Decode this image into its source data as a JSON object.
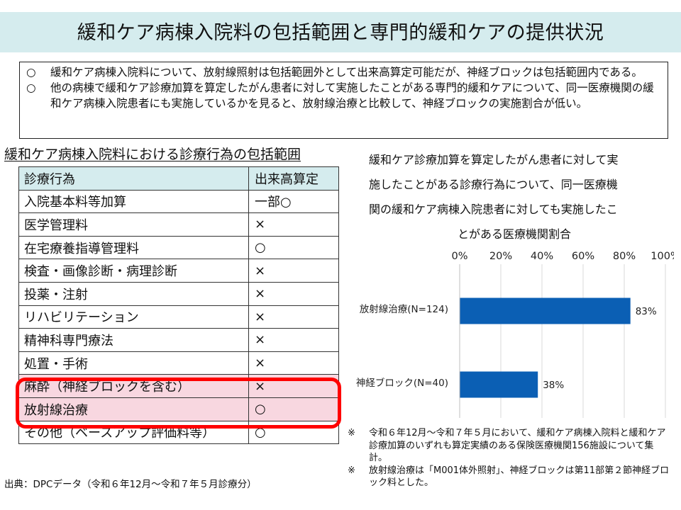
{
  "title": "緩和ケア病棟入院料の包括範囲と専門的緩和ケアの提供状況",
  "summary": [
    {
      "bullet": "○",
      "text": "緩和ケア病棟入院料について、放射線照射は包括範囲外として出来高算定可能だが、神経ブロックは包括範囲内である。"
    },
    {
      "bullet": "○",
      "text": "他の病棟で緩和ケア診療加算を算定したがん患者に対して実施したことがある専門的緩和ケアについて、同一医療機関の緩和ケア病棟入院患者にも実施しているかを見ると、放射線治療と比較して、神経ブロックの実施割合が低い。"
    }
  ],
  "table": {
    "title": "緩和ケア病棟入院料における診療行為の包括範囲",
    "headers": [
      "診療行為",
      "出来高算定"
    ],
    "rows": [
      [
        "入院基本料等加算",
        "一部○"
      ],
      [
        "医学管理料",
        "×"
      ],
      [
        "在宅療養指導管理料",
        "○"
      ],
      [
        "検査・画像診断・病理診断",
        "×"
      ],
      [
        "投薬・注射",
        "×"
      ],
      [
        "リハビリテーション",
        "×"
      ],
      [
        "精神科専門療法",
        "×"
      ],
      [
        "処置・手術",
        "×"
      ],
      [
        "麻酔（神経ブロックを含む）",
        "×"
      ],
      [
        "放射線治療",
        "○"
      ],
      [
        "その他（ベースアップ評価料等）",
        "○"
      ]
    ]
  },
  "chart_data": {
    "type": "bar",
    "orientation": "horizontal",
    "title_lines": [
      "緩和ケア診療加算を算定したがん患者に対して実",
      "施したことがある診療行為について、同一医療機",
      "関の緩和ケア病棟入院患者に対しても実施したこ",
      "とがある医療機関割合"
    ],
    "categories": [
      "放射線治療(N=124)",
      "神経ブロック(N=40)"
    ],
    "values": [
      83,
      38
    ],
    "data_labels": [
      "83%",
      "38%"
    ],
    "xlim": [
      0,
      100
    ],
    "xticks": [
      "0%",
      "20%",
      "40%",
      "60%",
      "80%",
      "100%"
    ],
    "grid": true,
    "bar_color": "#0b5fb4"
  },
  "notes": [
    {
      "mark": "※",
      "text": "令和６年12月～令和７年５月において、緩和ケア病棟入院料と緩和ケア診療加算のいずれも算定実績のある保険医療機関156施設について集計。"
    },
    {
      "mark": "※",
      "text": "放射線治療は「M001体外照射」、神経ブロックは第11部第２節神経ブロック料とした。"
    }
  ],
  "source": "出典：DPCデータ（令和６年12月～令和７年５月診療分）"
}
